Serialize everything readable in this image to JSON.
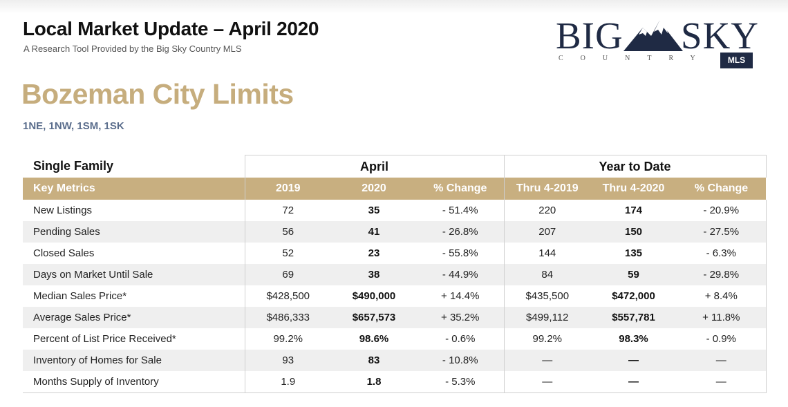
{
  "header": {
    "title": "Local Market Update – April 2020",
    "subtitle": "A Research Tool Provided by the Big Sky Country MLS",
    "area_name": "Bozeman City Limits",
    "area_codes": "1NE, 1NW, 1SM, 1SK"
  },
  "logo": {
    "word_left": "BIG",
    "word_right": "SKY",
    "tagline": "COUNTRY",
    "badge": "MLS"
  },
  "table": {
    "section_label": "Single Family",
    "group_april": "April",
    "group_ytd": "Year to Date",
    "columns": [
      "Key Metrics",
      "2019",
      "2020",
      "% Change",
      "Thru 4-2019",
      "Thru 4-2020",
      "% Change"
    ],
    "rows": [
      [
        "New Listings",
        "72",
        "35",
        "- 51.4%",
        "220",
        "174",
        "- 20.9%"
      ],
      [
        "Pending Sales",
        "56",
        "41",
        "- 26.8%",
        "207",
        "150",
        "- 27.5%"
      ],
      [
        "Closed Sales",
        "52",
        "23",
        "- 55.8%",
        "144",
        "135",
        "- 6.3%"
      ],
      [
        "Days on Market Until Sale",
        "69",
        "38",
        "- 44.9%",
        "84",
        "59",
        "- 29.8%"
      ],
      [
        "Median Sales Price*",
        "$428,500",
        "$490,000",
        "+ 14.4%",
        "$435,500",
        "$472,000",
        "+ 8.4%"
      ],
      [
        "Average Sales Price*",
        "$486,333",
        "$657,573",
        "+ 35.2%",
        "$499,112",
        "$557,781",
        "+ 11.8%"
      ],
      [
        "Percent of List Price Received*",
        "99.2%",
        "98.6%",
        "- 0.6%",
        "99.2%",
        "98.3%",
        "- 0.9%"
      ],
      [
        "Inventory of Homes for Sale",
        "93",
        "83",
        "- 10.8%",
        "—",
        "—",
        "—"
      ],
      [
        "Months Supply of Inventory",
        "1.9",
        "1.8",
        "- 5.3%",
        "—",
        "—",
        "—"
      ]
    ]
  }
}
